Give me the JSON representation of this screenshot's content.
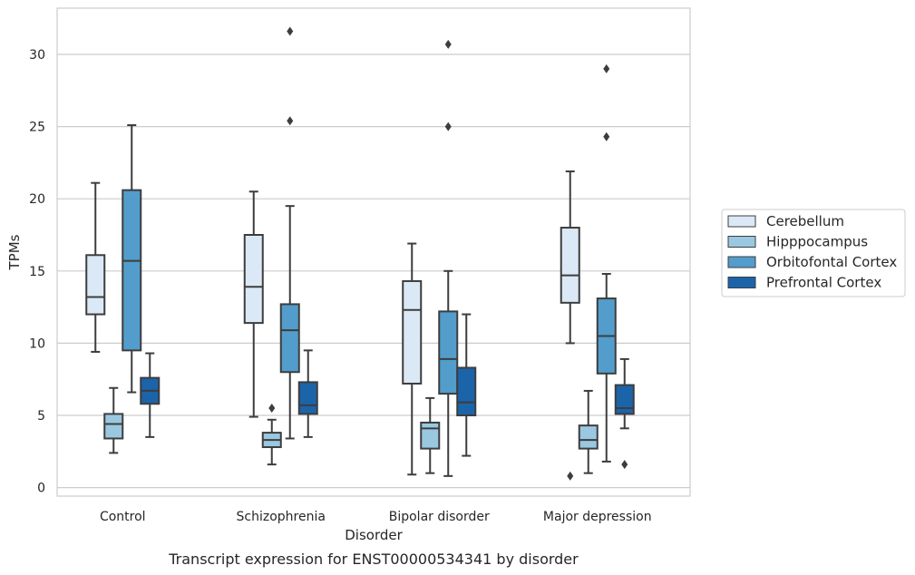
{
  "chart_data": {
    "type": "box",
    "title": "",
    "xlabel": "Disorder",
    "ylabel": "TPMs",
    "caption": "Transcript expression for ENST00000534341 by disorder",
    "ylim": [
      -0.6,
      33.0
    ],
    "yticks": [
      0,
      5,
      10,
      15,
      20,
      25,
      30
    ],
    "grid": true,
    "legend_position": "right",
    "categories": [
      "Control",
      "Schizophrenia",
      "Bipolar disorder",
      "Major depression"
    ],
    "series": [
      {
        "name": "Cerebellum",
        "color": "#dbe9f6",
        "boxes": [
          {
            "min": 9.4,
            "q1": 12.0,
            "median": 13.2,
            "q3": 16.1,
            "max": 21.1,
            "outliers": []
          },
          {
            "min": 4.9,
            "q1": 11.4,
            "median": 13.9,
            "q3": 17.5,
            "max": 20.5,
            "outliers": []
          },
          {
            "min": 0.9,
            "q1": 7.2,
            "median": 12.3,
            "q3": 14.3,
            "max": 16.9,
            "outliers": []
          },
          {
            "min": 10.0,
            "q1": 12.8,
            "median": 14.7,
            "q3": 18.0,
            "max": 21.9,
            "outliers": [
              0.8
            ]
          }
        ]
      },
      {
        "name": "Hipppocampus",
        "color": "#9ac8e0",
        "boxes": [
          {
            "min": 2.4,
            "q1": 3.4,
            "median": 4.4,
            "q3": 5.1,
            "max": 6.9,
            "outliers": []
          },
          {
            "min": 1.6,
            "q1": 2.8,
            "median": 3.3,
            "q3": 3.8,
            "max": 4.7,
            "outliers": [
              5.5
            ]
          },
          {
            "min": 1.0,
            "q1": 2.7,
            "median": 4.1,
            "q3": 4.5,
            "max": 6.2,
            "outliers": []
          },
          {
            "min": 1.0,
            "q1": 2.7,
            "median": 3.3,
            "q3": 4.3,
            "max": 6.7,
            "outliers": []
          }
        ]
      },
      {
        "name": "Orbitofontal Cortex",
        "color": "#529dcc",
        "boxes": [
          {
            "min": 6.6,
            "q1": 9.5,
            "median": 15.7,
            "q3": 20.6,
            "max": 25.1,
            "outliers": []
          },
          {
            "min": 3.4,
            "q1": 8.0,
            "median": 10.9,
            "q3": 12.7,
            "max": 19.5,
            "outliers": [
              25.4,
              31.6
            ]
          },
          {
            "min": 0.8,
            "q1": 6.5,
            "median": 8.9,
            "q3": 12.2,
            "max": 15.0,
            "outliers": [
              25.0,
              30.7
            ]
          },
          {
            "min": 1.8,
            "q1": 7.9,
            "median": 10.5,
            "q3": 13.1,
            "max": 14.8,
            "outliers": [
              24.3,
              29.0
            ]
          }
        ]
      },
      {
        "name": "Prefrontal Cortex",
        "color": "#1b64aa",
        "boxes": [
          {
            "min": 3.5,
            "q1": 5.8,
            "median": 6.7,
            "q3": 7.6,
            "max": 9.3,
            "outliers": []
          },
          {
            "min": 3.5,
            "q1": 5.1,
            "median": 5.7,
            "q3": 7.3,
            "max": 9.5,
            "outliers": []
          },
          {
            "min": 2.2,
            "q1": 5.0,
            "median": 5.9,
            "q3": 8.3,
            "max": 12.0,
            "outliers": []
          },
          {
            "min": 4.1,
            "q1": 5.1,
            "median": 5.5,
            "q3": 7.1,
            "max": 8.9,
            "outliers": [
              1.6
            ]
          }
        ]
      }
    ]
  }
}
